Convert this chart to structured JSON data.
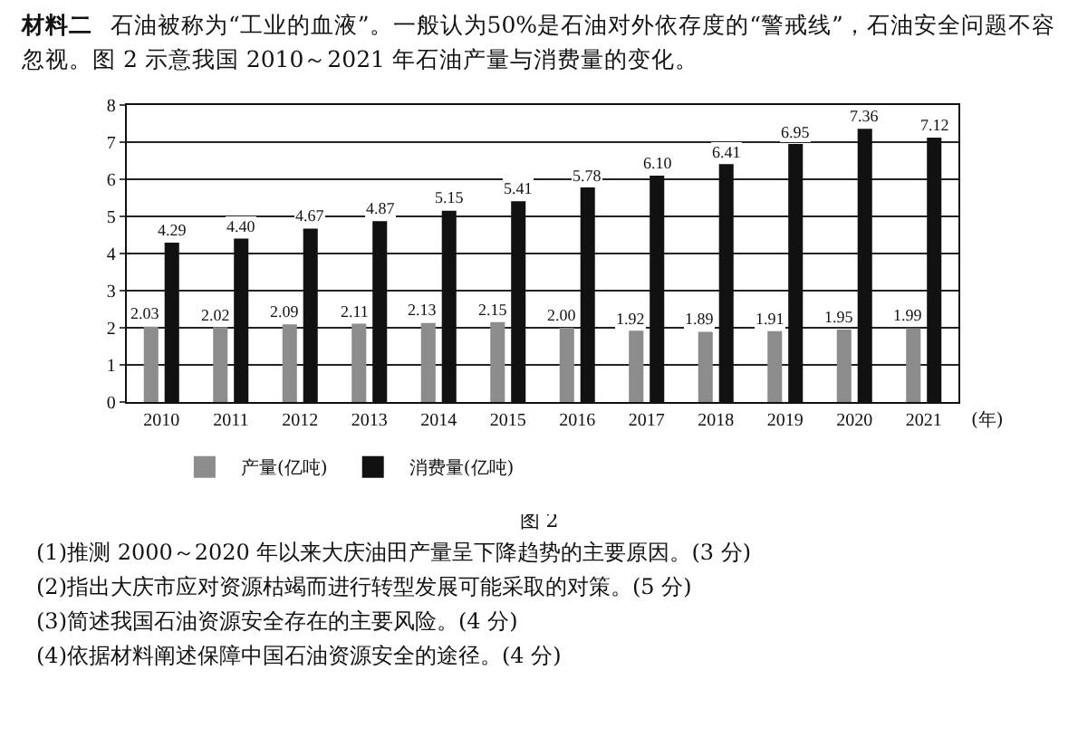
{
  "chart_data": {
    "type": "bar",
    "title": "材料二",
    "subtitle": "石油被称为“工业的血液”。一般认为50%是石油对外依存度的“警戒线”，石油安全问题不容忽视。图 2 示意我国 2010～2021 年石油产量与消费量的变化。",
    "xlabel": "(年)",
    "categories": [
      "2010",
      "2011",
      "2012",
      "2013",
      "2014",
      "2015",
      "2016",
      "2017",
      "2018",
      "2019",
      "2020",
      "2021"
    ],
    "series": [
      {
        "name": "产量(亿吨)",
        "color": "#8c8c8c",
        "values": [
          2.03,
          2.02,
          2.09,
          2.11,
          2.13,
          2.15,
          2.0,
          1.92,
          1.89,
          1.91,
          1.95,
          1.99
        ],
        "value_labels": [
          "2.03",
          "2.02",
          "2.09",
          "2.11",
          "2.13",
          "2.15",
          "2.00",
          "1.92",
          "1.89",
          "1.91",
          "1.95",
          "1.99"
        ]
      },
      {
        "name": "消费量(亿吨)",
        "color": "#111111",
        "values": [
          4.29,
          4.4,
          4.67,
          4.87,
          5.15,
          5.41,
          5.78,
          6.1,
          6.41,
          6.95,
          7.36,
          7.12
        ],
        "value_labels": [
          "4.29",
          "4.40",
          "4.67",
          "4.87",
          "5.15",
          "5.41",
          "5.78",
          "6.10",
          "6.41",
          "6.95",
          "7.36",
          "7.12"
        ]
      }
    ],
    "ylim": [
      0,
      8
    ],
    "yticks": [
      0,
      1,
      2,
      3,
      4,
      5,
      6,
      7,
      8
    ],
    "grid": "y",
    "legend": "bottom",
    "annotations": [
      "图 2",
      "(1)推测 2000～2020 年以来大庆油田产量呈下降趋势的主要原因。(3 分)",
      "(2)指出大庆市应对资源枯竭而进行转型发展可能采取的对策。(5 分)",
      "(3)简述我国石油资源安全存在的主要风险。(4 分)",
      "(4)依据材料阐述保障中国石油资源安全的途径。(4 分)"
    ]
  }
}
